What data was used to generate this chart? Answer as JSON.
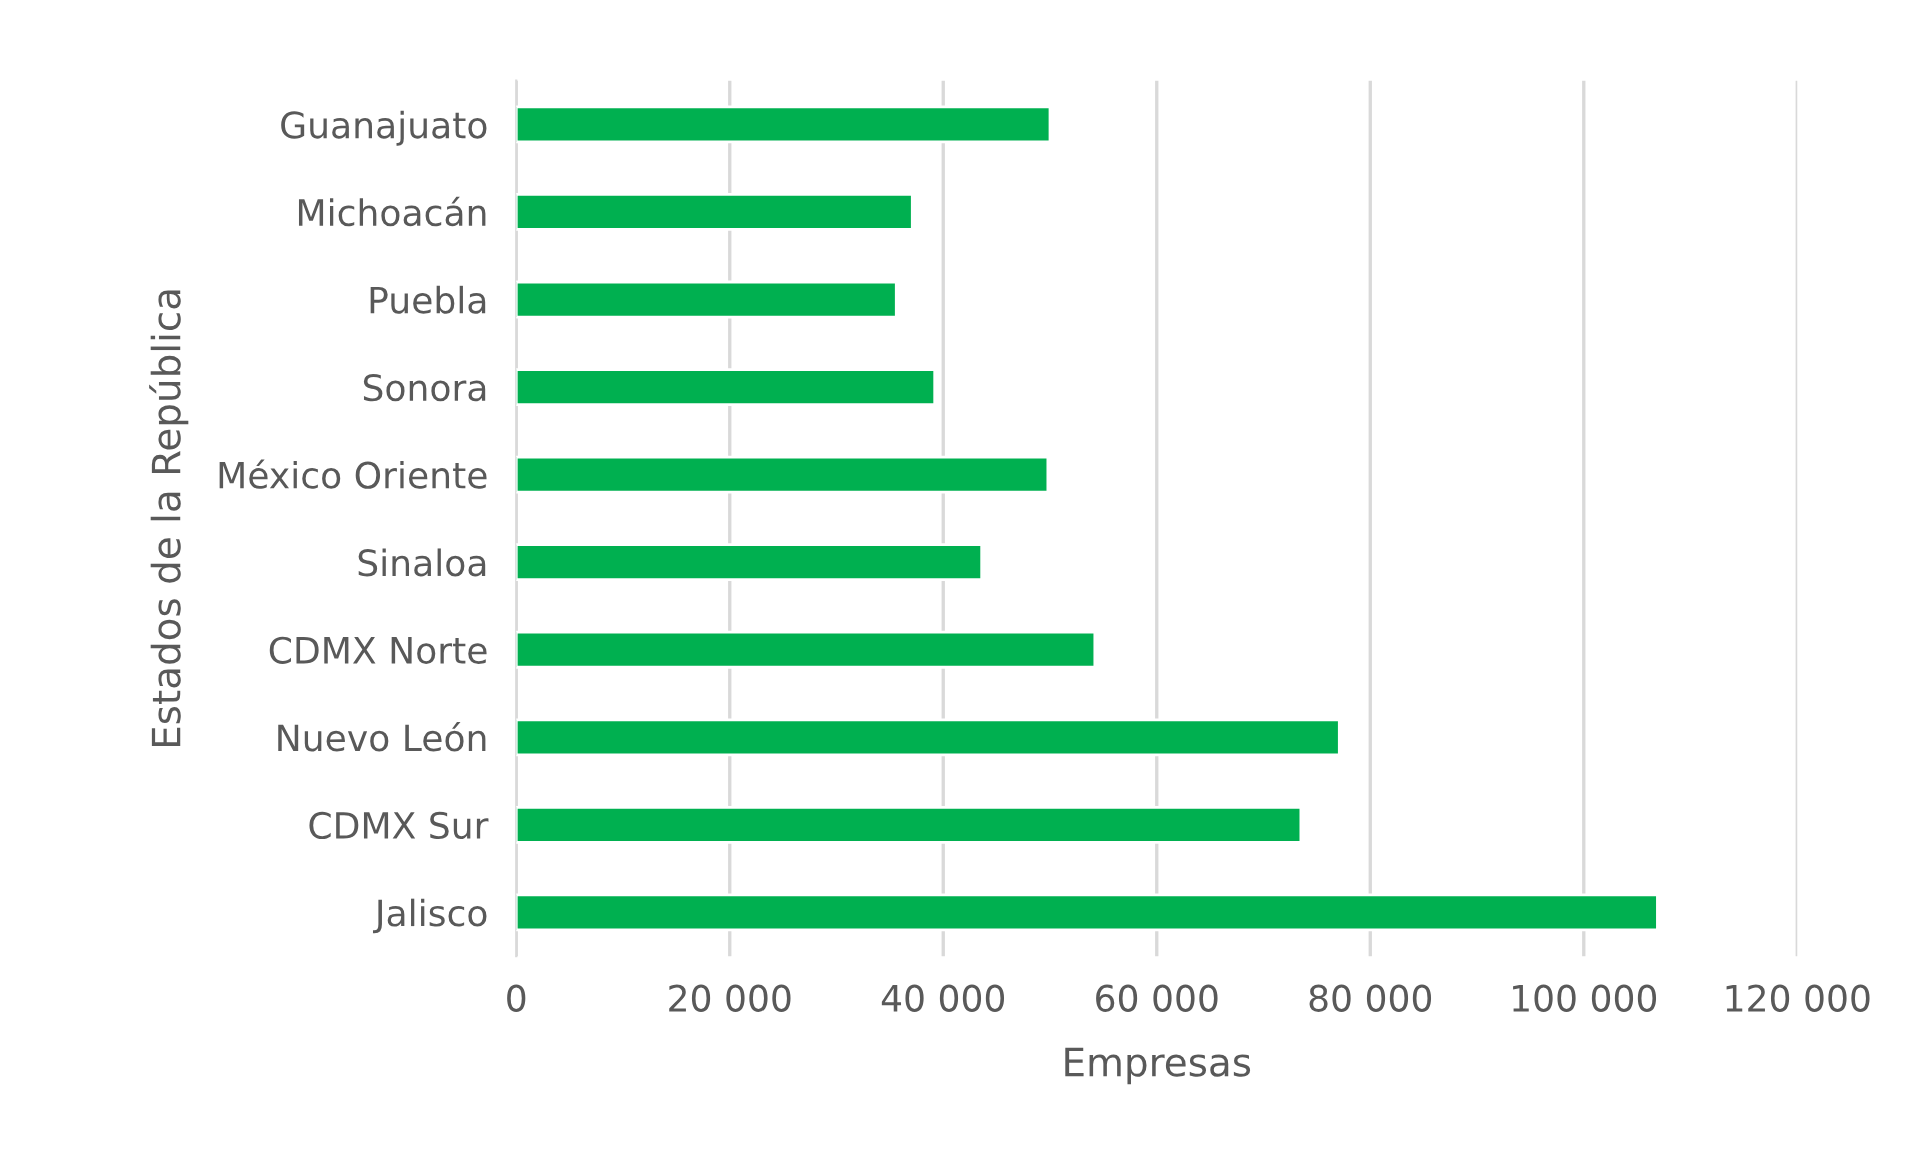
{
  "chart_data": {
    "type": "bar",
    "orientation": "horizontal",
    "xlabel": "Empresas",
    "ylabel": "Estados de la República",
    "categories": [
      "Guanajuato",
      "Michoacán",
      "Puebla",
      "Sonora",
      "México Oriente",
      "Sinaloa",
      "CDMX Norte",
      "Nuevo León",
      "CDMX Sur",
      "Jalisco"
    ],
    "values": [
      50000,
      37100,
      35600,
      39200,
      49800,
      43600,
      54200,
      77100,
      73500,
      106900
    ],
    "color": "#00b050",
    "xlim": [
      0,
      120000
    ],
    "xticks": [
      0,
      {
        "value": 20000,
        "label": "20 000"
      },
      {
        "value": 40000,
        "label": "40 000"
      },
      {
        "value": 60000,
        "label": "60 000"
      },
      {
        "value": 80000,
        "label": "80 000"
      },
      {
        "value": 100000,
        "label": "100 000"
      },
      {
        "value": 120000,
        "label": "120 000"
      }
    ],
    "grid": "x"
  }
}
